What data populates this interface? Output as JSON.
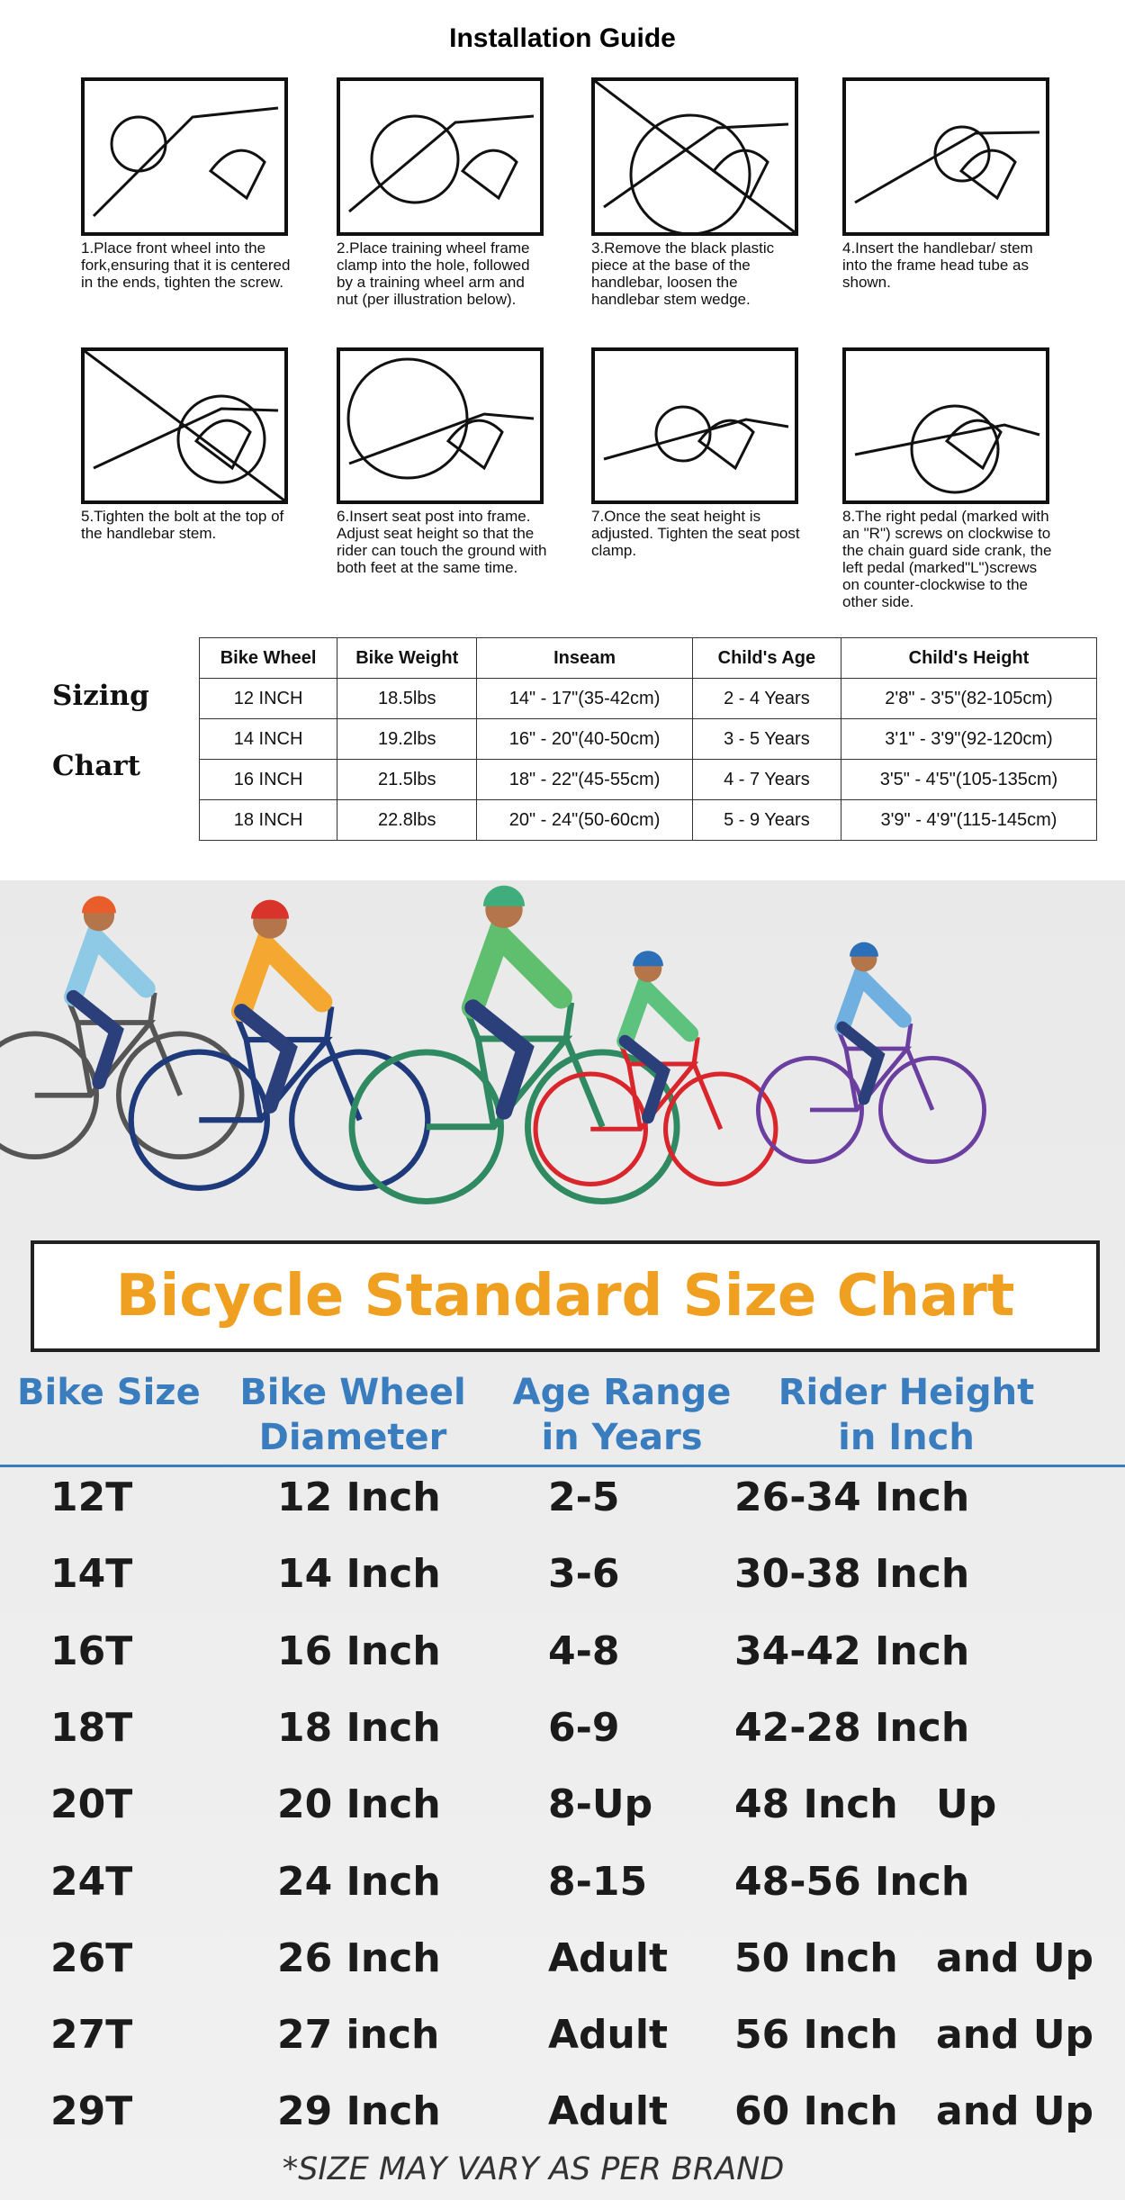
{
  "installation": {
    "title": "Installation Guide",
    "steps": [
      "1.Place front wheel into the fork,ensuring that it is centered in the ends, tighten the screw.",
      "2.Place training wheel frame clamp into the hole, followed by a training wheel arm and nut (per illustration below).",
      "3.Remove the black plastic piece at the base of the handlebar, loosen the handlebar stem wedge.",
      "4.Insert the handlebar/ stem  into the frame head tube as shown.",
      "5.Tighten the bolt at the top of the handlebar stem.",
      "6.Insert seat post into frame. Adjust seat height so that the rider can touch the ground with both feet at the same time.",
      "7.Once the seat height is adjusted. Tighten the seat post clamp.",
      "8.The right pedal (marked with an \"R\") screws on clockwise to the chain guard side crank, the left pedal (marked\"L\")screws on counter-clockwise to the other side."
    ]
  },
  "sizing_chart": {
    "label": [
      "Sizing",
      "Chart"
    ],
    "headers": [
      "Bike Wheel",
      "Bike Weight",
      "Inseam",
      "Child's Age",
      "Child's Height"
    ],
    "rows": [
      [
        "12 INCH",
        "18.5lbs",
        "14\" - 17\"(35-42cm)",
        "2 - 4 Years",
        "2'8\" - 3'5\"(82-105cm)"
      ],
      [
        "14 INCH",
        "19.2lbs",
        "16\" - 20\"(40-50cm)",
        "3 - 5 Years",
        "3'1\" - 3'9\"(92-120cm)"
      ],
      [
        "16 INCH",
        "21.5lbs",
        "18\" - 22\"(45-55cm)",
        "4 - 7 Years",
        "3'5\" - 4'5\"(105-135cm)"
      ],
      [
        "18 INCH",
        "22.8lbs",
        "20\" - 24\"(50-60cm)",
        "5 - 9 Years",
        "3'9\" - 4'9\"(115-145cm)"
      ]
    ]
  },
  "standard_chart": {
    "title": "Bicycle Standard Size Chart",
    "headers": [
      [
        "Bike Size"
      ],
      [
        "Bike Wheel",
        "Diameter"
      ],
      [
        "Age Range",
        "in Years"
      ],
      [
        "Rider Height",
        "in Inch"
      ]
    ],
    "rows": [
      [
        "12T",
        "12 Inch",
        "2-5",
        "26-34 Inch"
      ],
      [
        "14T",
        "14 Inch",
        "3-6",
        "30-38 Inch"
      ],
      [
        "16T",
        "16 Inch",
        "4-8",
        "34-42 Inch"
      ],
      [
        "18T",
        "18 Inch",
        "6-9",
        "42-28 Inch"
      ],
      [
        "20T",
        "20 Inch",
        "8-Up",
        "48 Inch",
        "Up"
      ],
      [
        "24T",
        "24 Inch",
        "8-15",
        "48-56 Inch"
      ],
      [
        "26T",
        "26 Inch",
        "Adult",
        "50 Inch",
        "and Up"
      ],
      [
        "27T",
        "27 inch",
        "Adult",
        "56 Inch",
        "and Up"
      ],
      [
        "29T",
        "29 Inch",
        "Adult",
        "60 Inch",
        "and Up"
      ]
    ],
    "footnote": "*SIZE MAY VARY AS PER BRAND"
  }
}
